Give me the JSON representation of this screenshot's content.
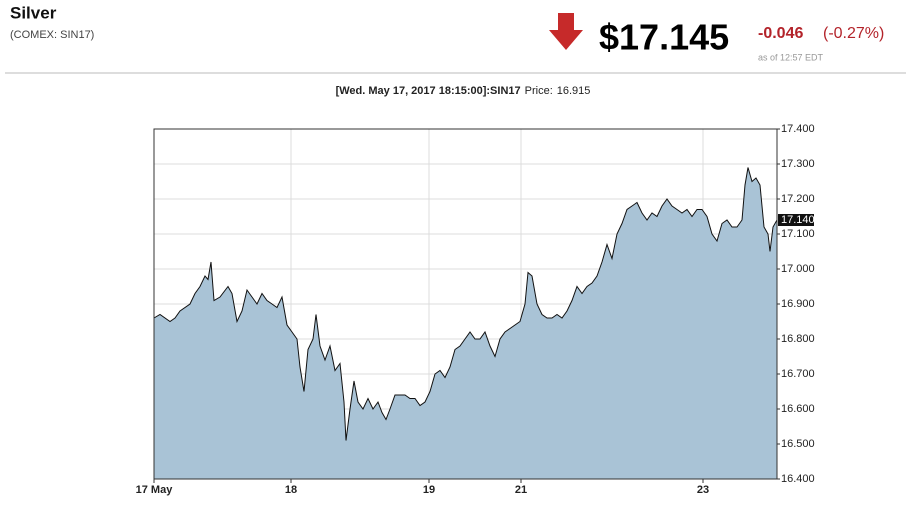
{
  "header": {
    "title": "Silver",
    "symbol": "(COMEX: SIN17)",
    "price": "$17.145",
    "change": "-0.046",
    "change_pct": "(-0.27%)",
    "timestamp": "as of 12:57 EDT"
  },
  "info": {
    "label": "[Wed. May 17, 2017 18:15:00]:SIN17",
    "price_label": "Price:",
    "price": 16.915
  },
  "chart_data": {
    "type": "area",
    "line_color": "#111111",
    "color": "#a9c3d6",
    "grid": true,
    "x": [
      0,
      1.2,
      3.2,
      4.2,
      5.2,
      7.2,
      8.2,
      9.2,
      10.2,
      10.8,
      11.4,
      12,
      13.2,
      14.8,
      15.6,
      16.6,
      17.6,
      18.6,
      19.6,
      20.6,
      21.6,
      22.6,
      23.6,
      24.6,
      25.6,
      26.6,
      27.6,
      28.6,
      29.2,
      30,
      30.8,
      31.8,
      32.4,
      33.2,
      34.2,
      35.2,
      36.2,
      37.2,
      38,
      38.4,
      39.2,
      40,
      40.8,
      41.8,
      42.8,
      43.8,
      44.8,
      45.6,
      46.4,
      47.2,
      48.2,
      49.2,
      50.2,
      51.2,
      52.2,
      53.2,
      54.2,
      55.2,
      56.2,
      57.2,
      58.2,
      59.2,
      60.2,
      61.2,
      62.2,
      63.2,
      64.2,
      65.2,
      66.2,
      67.2,
      68.2,
      69.2,
      70.2,
      71.2,
      72.2,
      73.2,
      74.2,
      74.8,
      75.6,
      76.6,
      77.6,
      78.6,
      79.6,
      80.6,
      81.6,
      82.6,
      83.6,
      84.6,
      85.6,
      86.6,
      87.6,
      88.6,
      89.6,
      90.6,
      91.6,
      92.6,
      93.6,
      94.6,
      95.6,
      96.6,
      97.6,
      98.6,
      99.6,
      100.6,
      101.6,
      102.6,
      103.6,
      104.6,
      105.6,
      106.6,
      107.6,
      108.6,
      109.6,
      110.6,
      111.6,
      112.6,
      113.6,
      114.6,
      115.6,
      116.6,
      117.6,
      118.2,
      118.8,
      119.6,
      120.4,
      121.2,
      122,
      122.8,
      123.2,
      123.8,
      124.6
    ],
    "values": [
      16.86,
      16.87,
      16.85,
      16.86,
      16.88,
      16.9,
      16.93,
      16.95,
      16.98,
      16.97,
      17.02,
      16.91,
      16.92,
      16.95,
      16.93,
      16.85,
      16.88,
      16.94,
      16.92,
      16.9,
      16.93,
      16.91,
      16.9,
      16.89,
      16.92,
      16.84,
      16.82,
      16.8,
      16.72,
      16.65,
      16.77,
      16.8,
      16.87,
      16.78,
      16.74,
      16.78,
      16.71,
      16.73,
      16.62,
      16.51,
      16.6,
      16.68,
      16.62,
      16.6,
      16.63,
      16.6,
      16.62,
      16.59,
      16.57,
      16.6,
      16.64,
      16.64,
      16.64,
      16.63,
      16.63,
      16.61,
      16.62,
      16.65,
      16.7,
      16.71,
      16.69,
      16.72,
      16.77,
      16.78,
      16.8,
      16.82,
      16.8,
      16.8,
      16.82,
      16.78,
      16.75,
      16.8,
      16.82,
      16.83,
      16.84,
      16.85,
      16.9,
      16.99,
      16.98,
      16.9,
      16.87,
      16.86,
      16.86,
      16.87,
      16.86,
      16.88,
      16.91,
      16.95,
      16.93,
      16.95,
      16.96,
      16.98,
      17.02,
      17.07,
      17.03,
      17.1,
      17.13,
      17.17,
      17.18,
      17.19,
      17.16,
      17.14,
      17.16,
      17.15,
      17.18,
      17.2,
      17.18,
      17.17,
      17.16,
      17.17,
      17.15,
      17.17,
      17.17,
      17.15,
      17.1,
      17.08,
      17.13,
      17.14,
      17.12,
      17.12,
      17.14,
      17.24,
      17.29,
      17.25,
      17.26,
      17.24,
      17.12,
      17.1,
      17.05,
      17.12,
      17.14
    ],
    "xlim": [
      0,
      124.6
    ],
    "xticks": [
      {
        "value": 0,
        "label": "17 May"
      },
      {
        "value": 27.4,
        "label": "18"
      },
      {
        "value": 55,
        "label": "19"
      },
      {
        "value": 73.4,
        "label": "21"
      },
      {
        "value": 109.8,
        "label": "23"
      }
    ],
    "ylim": [
      16.4,
      17.4
    ],
    "yticks": [
      {
        "value": 16.4,
        "label": "16.400"
      },
      {
        "value": 16.5,
        "label": "16.500"
      },
      {
        "value": 16.6,
        "label": "16.600"
      },
      {
        "value": 16.7,
        "label": "16.700"
      },
      {
        "value": 16.8,
        "label": "16.800"
      },
      {
        "value": 16.9,
        "label": "16.900"
      },
      {
        "value": 17.0,
        "label": "17.000"
      },
      {
        "value": 17.1,
        "label": "17.100"
      },
      {
        "value": 17.2,
        "label": "17.200"
      },
      {
        "value": 17.3,
        "label": "17.300"
      },
      {
        "value": 17.4,
        "label": "17.400"
      }
    ],
    "last_value": {
      "value": 17.14,
      "label": "17.140"
    }
  }
}
